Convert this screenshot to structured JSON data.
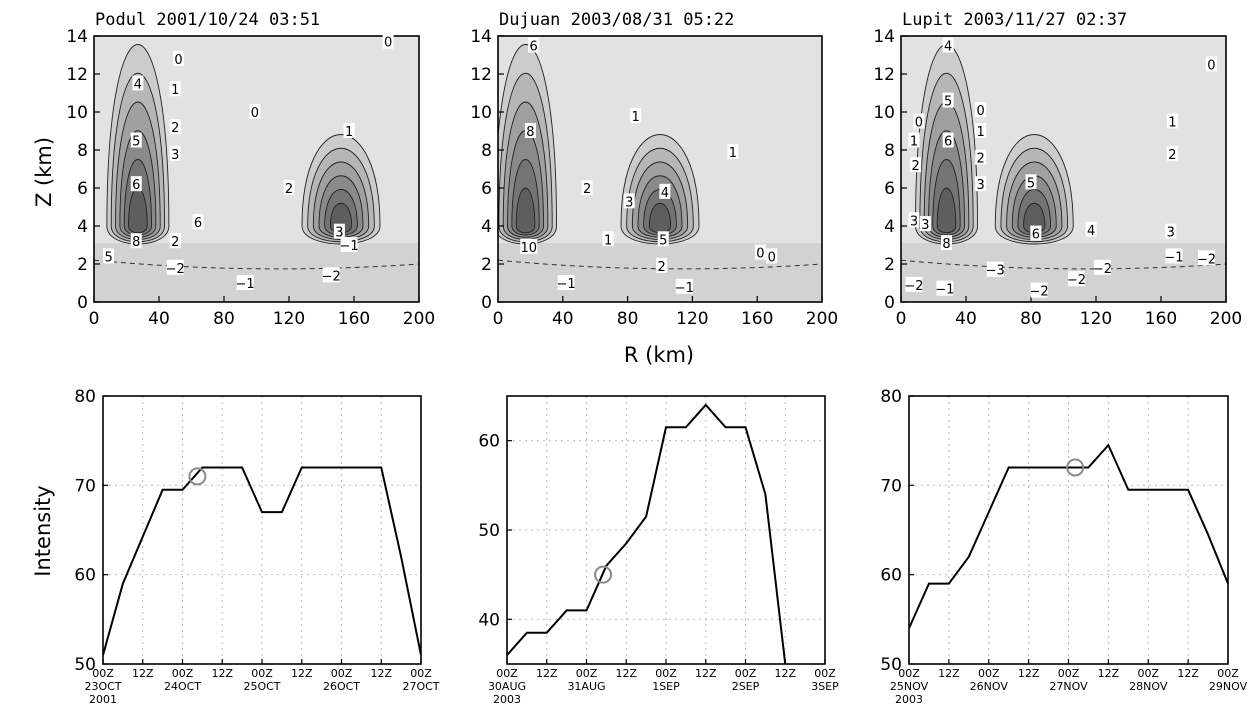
{
  "labels": {
    "z_axis": "Z (km)",
    "r_axis": "R (km)",
    "intensity_axis": "Intensity"
  },
  "colors": {
    "shade_light": "#e2e2e2",
    "shade_1": "#cccccc",
    "shade_2": "#b6b6b6",
    "shade_3": "#a0a0a0",
    "shade_4": "#8a8a8a",
    "shade_5": "#747474",
    "shade_6": "#5e5e5e",
    "negative_shade": "#d2d2d2",
    "marker": "#8a8a8a",
    "line": "#000000"
  },
  "chart_data": [
    {
      "type": "heatmap",
      "title": "Podul 2001/10/24 03:51",
      "xlabel": "R (km)",
      "ylabel": "Z (km)",
      "xlim": [
        0,
        200
      ],
      "ylim": [
        0,
        14
      ],
      "xticks": [
        "0",
        "40",
        "80",
        "120",
        "160",
        "200"
      ],
      "yticks": [
        "0",
        "2",
        "4",
        "6",
        "8",
        "10",
        "12",
        "14"
      ],
      "eyewalls": [
        {
          "r": 27,
          "z": 4
        },
        {
          "r": 152,
          "z": 4
        }
      ],
      "contour_labels": [
        {
          "text": "0",
          "r": 52,
          "z": 12.8
        },
        {
          "text": "0",
          "r": 181,
          "z": 13.7
        },
        {
          "text": "0",
          "r": 99,
          "z": 10
        },
        {
          "text": "1",
          "r": 50,
          "z": 11.2
        },
        {
          "text": "1",
          "r": 157,
          "z": 9
        },
        {
          "text": "2",
          "r": 50,
          "z": 9.2
        },
        {
          "text": "2",
          "r": 120,
          "z": 6
        },
        {
          "text": "2",
          "r": 50,
          "z": 3.2
        },
        {
          "text": "3",
          "r": 50,
          "z": 7.8
        },
        {
          "text": "3",
          "r": 151,
          "z": 3.7
        },
        {
          "text": "4",
          "r": 27,
          "z": 11.5
        },
        {
          "text": "5",
          "r": 26,
          "z": 8.5
        },
        {
          "text": "6",
          "r": 26,
          "z": 6.2
        },
        {
          "text": "6",
          "r": 64,
          "z": 4.2
        },
        {
          "text": "8",
          "r": 26,
          "z": 3.2
        },
        {
          "text": "5",
          "r": 9,
          "z": 2.4
        },
        {
          "text": "−1",
          "r": 157,
          "z": 3
        },
        {
          "text": "−1",
          "r": 93,
          "z": 1
        },
        {
          "text": "−2",
          "r": 50,
          "z": 1.8
        },
        {
          "text": "−2",
          "r": 146,
          "z": 1.4
        }
      ]
    },
    {
      "type": "heatmap",
      "title": "Dujuan 2003/08/31 05:22",
      "xlabel": "R (km)",
      "ylabel": "Z (km)",
      "xlim": [
        0,
        200
      ],
      "ylim": [
        0,
        14
      ],
      "xticks": [
        "0",
        "40",
        "80",
        "120",
        "160",
        "200"
      ],
      "yticks": [
        "0",
        "2",
        "4",
        "6",
        "8",
        "10",
        "12",
        "14"
      ],
      "eyewalls": [
        {
          "r": 17,
          "z": 4
        },
        {
          "r": 100,
          "z": 4
        }
      ],
      "contour_labels": [
        {
          "text": "6",
          "r": 22,
          "z": 13.5
        },
        {
          "text": "8",
          "r": 20,
          "z": 9
        },
        {
          "text": "10",
          "r": 19,
          "z": 2.9
        },
        {
          "text": "1",
          "r": 85,
          "z": 9.8
        },
        {
          "text": "1",
          "r": 145,
          "z": 7.9
        },
        {
          "text": "1",
          "r": 68,
          "z": 3.3
        },
        {
          "text": "2",
          "r": 55,
          "z": 6
        },
        {
          "text": "2",
          "r": 101,
          "z": 1.9
        },
        {
          "text": "3",
          "r": 81,
          "z": 5.3
        },
        {
          "text": "4",
          "r": 103,
          "z": 5.8
        },
        {
          "text": "5",
          "r": 102,
          "z": 3.3
        },
        {
          "text": "0",
          "r": 162,
          "z": 2.6
        },
        {
          "text": "0",
          "r": 169,
          "z": 2.4
        },
        {
          "text": "−1",
          "r": 42,
          "z": 1
        },
        {
          "text": "−1",
          "r": 115,
          "z": 0.8
        }
      ]
    },
    {
      "type": "heatmap",
      "title": "Lupit 2003/11/27 02:37",
      "xlabel": "R (km)",
      "ylabel": "Z (km)",
      "xlim": [
        0,
        200
      ],
      "ylim": [
        0,
        14
      ],
      "xticks": [
        "0",
        "40",
        "80",
        "120",
        "160",
        "200"
      ],
      "yticks": [
        "0",
        "2",
        "4",
        "6",
        "8",
        "10",
        "12",
        "14"
      ],
      "eyewalls": [
        {
          "r": 28,
          "z": 4
        },
        {
          "r": 82,
          "z": 4
        }
      ],
      "contour_labels": [
        {
          "text": "0",
          "r": 191,
          "z": 12.5
        },
        {
          "text": "0",
          "r": 11,
          "z": 9.5
        },
        {
          "text": "0",
          "r": 49,
          "z": 10.1
        },
        {
          "text": "1",
          "r": 8,
          "z": 8.5
        },
        {
          "text": "1",
          "r": 49,
          "z": 9
        },
        {
          "text": "1",
          "r": 167,
          "z": 9.5
        },
        {
          "text": "2",
          "r": 49,
          "z": 7.6
        },
        {
          "text": "2",
          "r": 167,
          "z": 7.8
        },
        {
          "text": "2",
          "r": 9,
          "z": 7.2
        },
        {
          "text": "3",
          "r": 49,
          "z": 6.2
        },
        {
          "text": "3",
          "r": 166,
          "z": 3.7
        },
        {
          "text": "3",
          "r": 8,
          "z": 4.3
        },
        {
          "text": "3",
          "r": 15,
          "z": 4.1
        },
        {
          "text": "4",
          "r": 29,
          "z": 13.5
        },
        {
          "text": "4",
          "r": 117,
          "z": 3.8
        },
        {
          "text": "5",
          "r": 29,
          "z": 10.6
        },
        {
          "text": "5",
          "r": 80,
          "z": 6.3
        },
        {
          "text": "6",
          "r": 29,
          "z": 8.5
        },
        {
          "text": "6",
          "r": 83,
          "z": 3.6
        },
        {
          "text": "8",
          "r": 28,
          "z": 3.1
        },
        {
          "text": "−1",
          "r": 27,
          "z": 0.7
        },
        {
          "text": "−1",
          "r": 168,
          "z": 2.4
        },
        {
          "text": "−2",
          "r": 8,
          "z": 0.9
        },
        {
          "text": "−2",
          "r": 85,
          "z": 0.6
        },
        {
          "text": "−2",
          "r": 124,
          "z": 1.8
        },
        {
          "text": "−2",
          "r": 108,
          "z": 1.2
        },
        {
          "text": "−2",
          "r": 188,
          "z": 2.3
        },
        {
          "text": "−3",
          "r": 58,
          "z": 1.7
        }
      ]
    },
    {
      "type": "line",
      "ylabel": "Intensity",
      "ylim": [
        50,
        80
      ],
      "yticks": [
        "50",
        "60",
        "70",
        "80"
      ],
      "xlim": [
        0,
        96
      ],
      "x_hour_labels": [
        "00Z",
        "12Z",
        "00Z",
        "12Z",
        "00Z",
        "12Z",
        "00Z",
        "12Z",
        "00Z"
      ],
      "x_day_labels": [
        "23OCT",
        "24OCT",
        "25OCT",
        "26OCT",
        "27OCT"
      ],
      "x_year_label": "2001",
      "x": [
        0,
        6,
        18,
        24,
        30,
        42,
        48,
        54,
        60,
        72,
        78,
        84,
        90,
        96
      ],
      "values": [
        51,
        59,
        69.5,
        69.5,
        72,
        72,
        67,
        67,
        72,
        72,
        72,
        72,
        62,
        51
      ],
      "marker": {
        "x": 28.5,
        "y": 71
      }
    },
    {
      "type": "line",
      "ylim": [
        35,
        65
      ],
      "yticks": [
        "40",
        "50",
        "60"
      ],
      "xlim": [
        0,
        96
      ],
      "x_hour_labels": [
        "00Z",
        "12Z",
        "00Z",
        "12Z",
        "00Z",
        "12Z",
        "00Z",
        "12Z",
        "00Z"
      ],
      "x_day_labels": [
        "30AUG",
        "31AUG",
        "1SEP",
        "2SEP",
        "3SEP"
      ],
      "x_year_label": "2003",
      "x": [
        0,
        6,
        12,
        18,
        24,
        30,
        36,
        42,
        48,
        54,
        60,
        66,
        72,
        78,
        84
      ],
      "values": [
        36,
        38.5,
        38.5,
        41,
        41,
        46,
        48.5,
        51.5,
        61.5,
        61.5,
        64,
        61.5,
        61.5,
        54,
        35
      ],
      "marker": {
        "x": 29,
        "y": 45
      }
    },
    {
      "type": "line",
      "ylim": [
        50,
        80
      ],
      "yticks": [
        "50",
        "60",
        "70",
        "80"
      ],
      "xlim": [
        0,
        96
      ],
      "x_hour_labels": [
        "00Z",
        "12Z",
        "00Z",
        "12Z",
        "00Z",
        "12Z",
        "00Z",
        "12Z",
        "00Z"
      ],
      "x_day_labels": [
        "25NOV",
        "26NOV",
        "27NOV",
        "28NOV",
        "29NOV"
      ],
      "x_year_label": "2003",
      "x": [
        0,
        6,
        12,
        18,
        24,
        30,
        36,
        42,
        48,
        54,
        60,
        66,
        72,
        78,
        84,
        90,
        96
      ],
      "values": [
        54,
        59,
        59,
        62,
        67,
        72,
        72,
        72,
        72,
        72,
        74.5,
        69.5,
        69.5,
        69.5,
        69.5,
        64.5,
        59
      ],
      "marker": {
        "x": 50,
        "y": 72
      }
    }
  ]
}
